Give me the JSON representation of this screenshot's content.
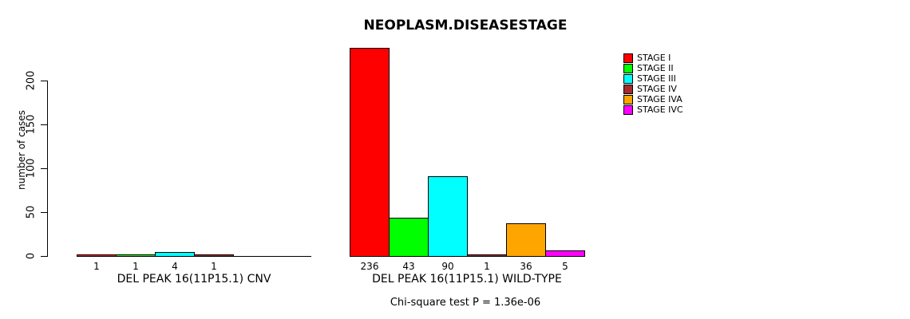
{
  "chart_data": {
    "type": "bar",
    "title": "NEOPLASM.DISEASESTAGE",
    "ylabel": "number of cases",
    "xlabel": "",
    "ylim": [
      0,
      236
    ],
    "yticks": [
      0,
      50,
      100,
      150,
      200
    ],
    "grid": false,
    "legend_position": "right-top",
    "series": [
      {
        "name": "STAGE I",
        "color": "#ff0000"
      },
      {
        "name": "STAGE II",
        "color": "#00ff00"
      },
      {
        "name": "STAGE III",
        "color": "#00ffff"
      },
      {
        "name": "STAGE IV",
        "color": "#a52a2a"
      },
      {
        "name": "STAGE IVA",
        "color": "#ffa500"
      },
      {
        "name": "STAGE IVC",
        "color": "#ff00ff"
      }
    ],
    "groups": [
      {
        "label": "DEL PEAK 16(11P15.1) CNV",
        "values": [
          1,
          1,
          4,
          1,
          0,
          0
        ]
      },
      {
        "label": "DEL PEAK 16(11P15.1) WILD-TYPE",
        "values": [
          236,
          43,
          90,
          1,
          36,
          5
        ]
      }
    ],
    "bar_value_labels_shown": true,
    "footnote": "Chi-square test P = 1.36e-06",
    "colors": {
      "background": "#ffffff",
      "axis": "#000000",
      "bar_outline": "#000000",
      "text": "#000000"
    }
  }
}
